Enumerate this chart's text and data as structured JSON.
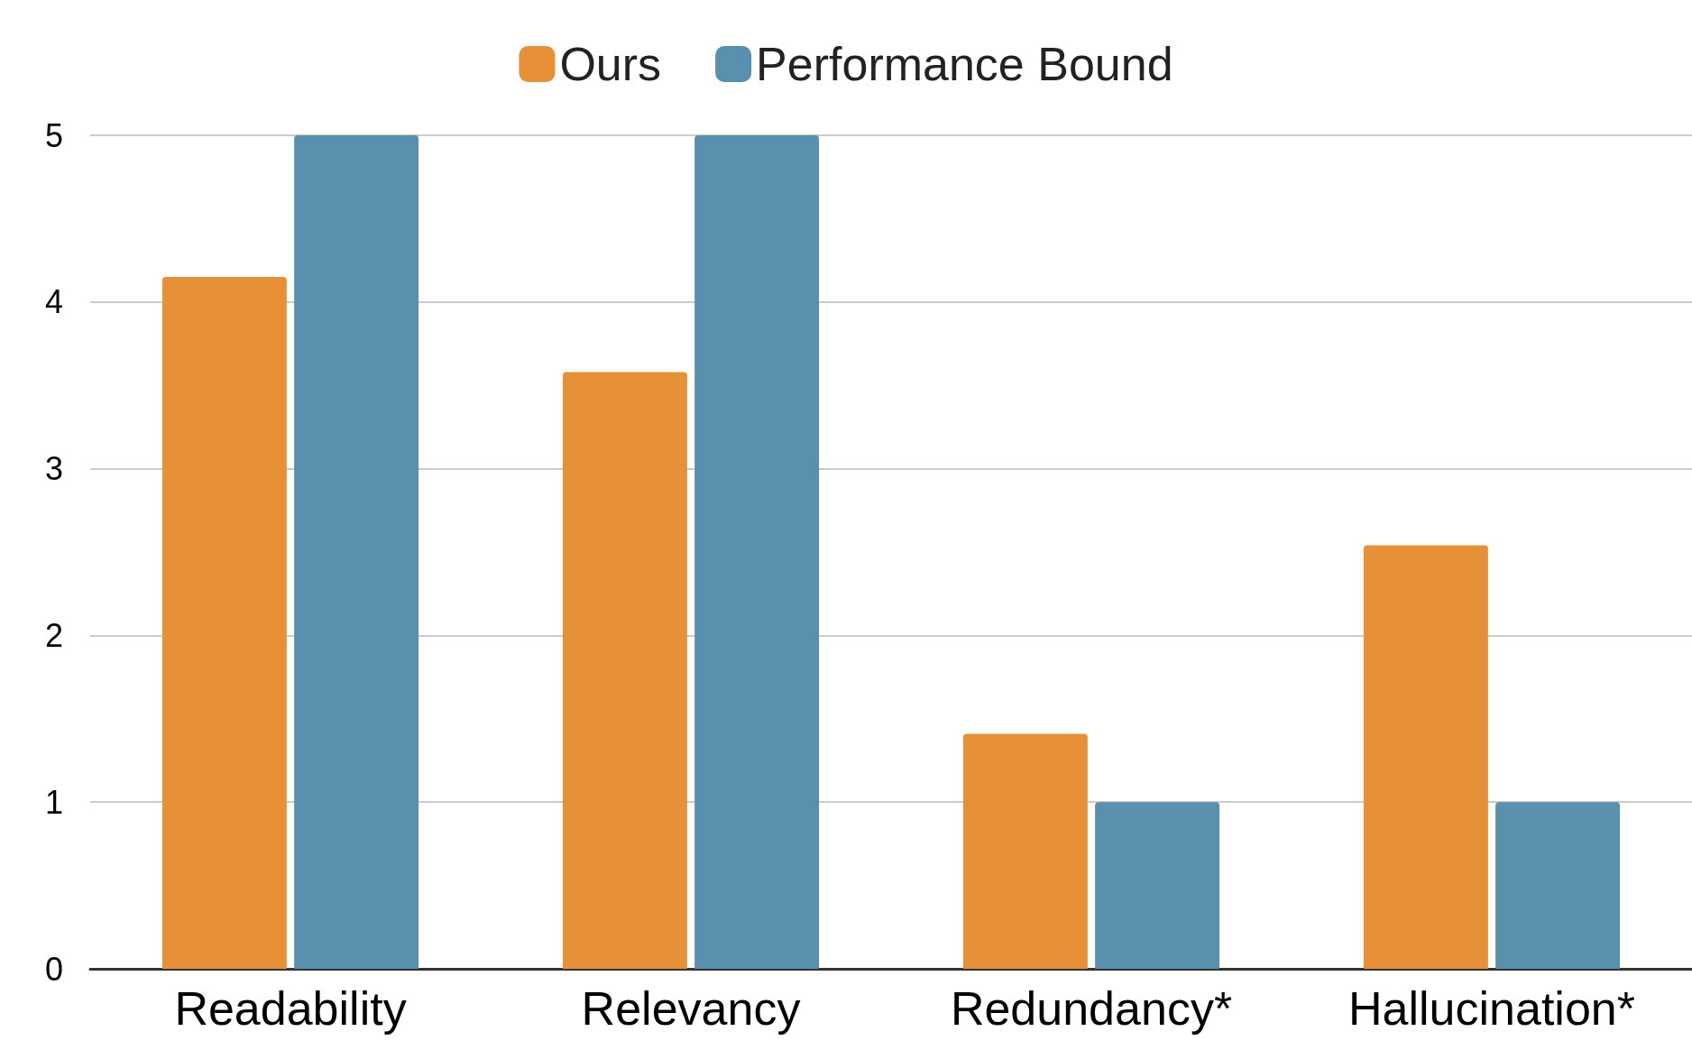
{
  "chart_data": {
    "type": "bar",
    "categories": [
      "Readability",
      "Relevancy",
      "Redundancy*",
      "Hallucination*"
    ],
    "series": [
      {
        "name": "Ours",
        "color": "#e69138",
        "values": [
          4.15,
          3.58,
          1.41,
          2.54
        ]
      },
      {
        "name": "Performance Bound",
        "color": "#5990ae",
        "values": [
          5,
          5,
          1,
          1
        ]
      }
    ],
    "ylim": [
      0,
      5
    ],
    "yticks": [
      0,
      1,
      2,
      3,
      4,
      5
    ],
    "grid": "y",
    "legend": "top"
  }
}
